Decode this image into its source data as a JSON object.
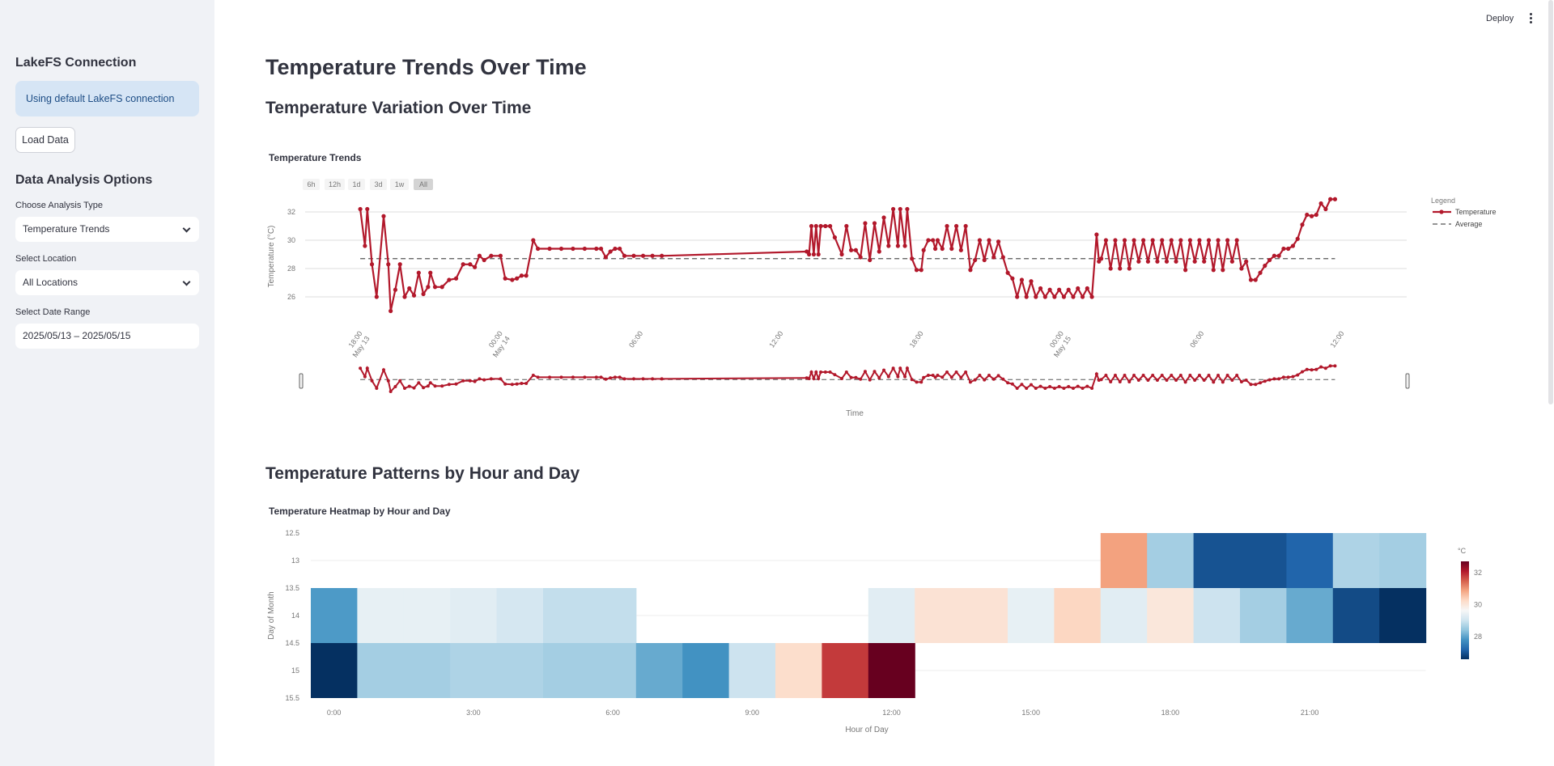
{
  "topbar": {
    "deploy_label": "Deploy",
    "menu_icon": "kebab-menu-icon"
  },
  "sidebar": {
    "connection_heading": "LakeFS Connection",
    "connection_info": "Using default LakeFS connection",
    "load_button": "Load Data",
    "options_heading": "Data Analysis Options",
    "analysis_label": "Choose Analysis Type",
    "analysis_value": "Temperature Trends",
    "location_label": "Select Location",
    "location_value": "All Locations",
    "date_label": "Select Date Range",
    "date_value": "2025/05/13 – 2025/05/15"
  },
  "main": {
    "page_title": "Temperature Trends Over Time",
    "section1_title": "Temperature Variation Over Time",
    "section2_title": "Temperature Patterns by Hour and Day"
  },
  "range_selector": [
    "6h",
    "12h",
    "1d",
    "3d",
    "1w",
    "All"
  ],
  "chart_data": [
    {
      "type": "line",
      "title": "Temperature Trends",
      "xlabel": "Time",
      "ylabel": "Temperature (°C)",
      "yticks": [
        "26",
        "28",
        "30",
        "32"
      ],
      "ylim": [
        25.5,
        33
      ],
      "xticks": [
        {
          "hour": 18,
          "line1": "18:00",
          "line2": "May 13"
        },
        {
          "hour": 24,
          "line1": "00:00",
          "line2": "May 14"
        },
        {
          "hour": 30,
          "line1": "06:00",
          "line2": ""
        },
        {
          "hour": 36,
          "line1": "12:00",
          "line2": ""
        },
        {
          "hour": 42,
          "line1": "18:00",
          "line2": ""
        },
        {
          "hour": 48,
          "line1": "00:00",
          "line2": "May 15"
        },
        {
          "hour": 54,
          "line1": "06:00",
          "line2": ""
        },
        {
          "hour": 60,
          "line1": "12:00",
          "line2": ""
        }
      ],
      "xlim_hours": [
        18,
        60
      ],
      "legend_title": "Legend",
      "legend_position": "top-right",
      "average": 28.7,
      "series": [
        {
          "name": "Temperature",
          "color": "#b2182b",
          "points": [
            [
              17.9,
              32.2
            ],
            [
              18.1,
              29.6
            ],
            [
              18.2,
              32.2
            ],
            [
              18.4,
              28.3
            ],
            [
              18.6,
              26.0
            ],
            [
              18.9,
              31.7
            ],
            [
              19.1,
              28.3
            ],
            [
              19.2,
              25.0
            ],
            [
              19.4,
              26.5
            ],
            [
              19.6,
              28.3
            ],
            [
              19.8,
              26.0
            ],
            [
              20.0,
              26.6
            ],
            [
              20.2,
              26.1
            ],
            [
              20.4,
              27.7
            ],
            [
              20.6,
              26.2
            ],
            [
              20.8,
              26.7
            ],
            [
              20.9,
              27.7
            ],
            [
              21.1,
              26.7
            ],
            [
              21.4,
              26.7
            ],
            [
              21.7,
              27.2
            ],
            [
              22.0,
              27.3
            ],
            [
              22.3,
              28.3
            ],
            [
              22.6,
              28.3
            ],
            [
              22.8,
              28.1
            ],
            [
              23.0,
              28.9
            ],
            [
              23.2,
              28.6
            ],
            [
              23.5,
              28.9
            ],
            [
              23.9,
              28.9
            ],
            [
              24.1,
              27.3
            ],
            [
              24.4,
              27.2
            ],
            [
              24.6,
              27.3
            ],
            [
              24.8,
              27.5
            ],
            [
              25.0,
              27.5
            ],
            [
              25.3,
              30.0
            ],
            [
              25.5,
              29.4
            ],
            [
              26.0,
              29.4
            ],
            [
              26.5,
              29.4
            ],
            [
              27.0,
              29.4
            ],
            [
              27.5,
              29.4
            ],
            [
              28.0,
              29.4
            ],
            [
              28.2,
              29.4
            ],
            [
              28.4,
              28.8
            ],
            [
              28.6,
              29.2
            ],
            [
              28.8,
              29.4
            ],
            [
              29.0,
              29.4
            ],
            [
              29.2,
              28.9
            ],
            [
              29.6,
              28.9
            ],
            [
              30.0,
              28.9
            ],
            [
              30.4,
              28.9
            ],
            [
              30.8,
              28.9
            ],
            [
              37.0,
              29.2
            ],
            [
              37.1,
              29.0
            ],
            [
              37.2,
              31.0
            ],
            [
              37.3,
              29.0
            ],
            [
              37.4,
              31.0
            ],
            [
              37.5,
              29.0
            ],
            [
              37.6,
              31.0
            ],
            [
              37.8,
              31.0
            ],
            [
              38.0,
              31.0
            ],
            [
              38.2,
              30.2
            ],
            [
              38.5,
              29.0
            ],
            [
              38.7,
              31.0
            ],
            [
              38.9,
              29.3
            ],
            [
              39.1,
              29.3
            ],
            [
              39.3,
              28.8
            ],
            [
              39.5,
              31.2
            ],
            [
              39.7,
              28.6
            ],
            [
              39.9,
              31.2
            ],
            [
              40.1,
              29.2
            ],
            [
              40.3,
              31.6
            ],
            [
              40.5,
              29.6
            ],
            [
              40.7,
              32.2
            ],
            [
              40.9,
              29.6
            ],
            [
              41.0,
              32.2
            ],
            [
              41.2,
              29.6
            ],
            [
              41.3,
              32.2
            ],
            [
              41.5,
              28.7
            ],
            [
              41.7,
              27.9
            ],
            [
              41.9,
              27.9
            ],
            [
              42.0,
              29.3
            ],
            [
              42.2,
              30.0
            ],
            [
              42.4,
              30.0
            ],
            [
              42.5,
              29.4
            ],
            [
              42.6,
              30.0
            ],
            [
              42.8,
              29.4
            ],
            [
              43.0,
              31.0
            ],
            [
              43.2,
              29.4
            ],
            [
              43.4,
              31.0
            ],
            [
              43.6,
              29.3
            ],
            [
              43.8,
              31.0
            ],
            [
              44.0,
              27.9
            ],
            [
              44.2,
              28.6
            ],
            [
              44.4,
              30.0
            ],
            [
              44.6,
              28.6
            ],
            [
              44.8,
              30.0
            ],
            [
              45.0,
              28.8
            ],
            [
              45.2,
              29.9
            ],
            [
              45.4,
              28.8
            ],
            [
              45.6,
              27.7
            ],
            [
              45.8,
              27.3
            ],
            [
              46.0,
              26.0
            ],
            [
              46.2,
              27.2
            ],
            [
              46.4,
              26.0
            ],
            [
              46.6,
              27.1
            ],
            [
              46.8,
              26.0
            ],
            [
              47.0,
              26.6
            ],
            [
              47.2,
              26.0
            ],
            [
              47.4,
              26.5
            ],
            [
              47.6,
              26.0
            ],
            [
              47.8,
              26.5
            ],
            [
              48.0,
              26.0
            ],
            [
              48.2,
              26.5
            ],
            [
              48.4,
              26.0
            ],
            [
              48.6,
              26.6
            ],
            [
              48.8,
              26.0
            ],
            [
              49.0,
              26.6
            ],
            [
              49.2,
              26.0
            ],
            [
              49.4,
              30.4
            ],
            [
              49.5,
              28.5
            ],
            [
              49.6,
              28.7
            ],
            [
              49.8,
              30.0
            ],
            [
              50.0,
              28.0
            ],
            [
              50.2,
              30.0
            ],
            [
              50.4,
              28.0
            ],
            [
              50.6,
              30.0
            ],
            [
              50.8,
              28.0
            ],
            [
              51.0,
              30.0
            ],
            [
              51.2,
              28.5
            ],
            [
              51.4,
              30.0
            ],
            [
              51.6,
              28.5
            ],
            [
              51.8,
              30.0
            ],
            [
              52.0,
              28.5
            ],
            [
              52.2,
              30.0
            ],
            [
              52.4,
              28.5
            ],
            [
              52.6,
              30.0
            ],
            [
              52.8,
              28.5
            ],
            [
              53.0,
              30.0
            ],
            [
              53.2,
              27.9
            ],
            [
              53.4,
              30.0
            ],
            [
              53.6,
              28.5
            ],
            [
              53.8,
              30.0
            ],
            [
              54.0,
              28.5
            ],
            [
              54.2,
              30.0
            ],
            [
              54.4,
              27.9
            ],
            [
              54.6,
              30.0
            ],
            [
              54.8,
              27.9
            ],
            [
              55.0,
              30.0
            ],
            [
              55.2,
              28.5
            ],
            [
              55.4,
              30.0
            ],
            [
              55.6,
              28.0
            ],
            [
              55.8,
              28.5
            ],
            [
              56.0,
              27.2
            ],
            [
              56.2,
              27.2
            ],
            [
              56.4,
              27.7
            ],
            [
              56.6,
              28.2
            ],
            [
              56.8,
              28.6
            ],
            [
              57.0,
              28.9
            ],
            [
              57.2,
              28.9
            ],
            [
              57.4,
              29.4
            ],
            [
              57.6,
              29.4
            ],
            [
              57.8,
              29.6
            ],
            [
              58.0,
              30.1
            ],
            [
              58.2,
              31.1
            ],
            [
              58.4,
              31.8
            ],
            [
              58.6,
              31.7
            ],
            [
              58.8,
              31.8
            ],
            [
              59.0,
              32.6
            ],
            [
              59.2,
              32.2
            ],
            [
              59.4,
              32.9
            ],
            [
              59.6,
              32.9
            ]
          ]
        },
        {
          "name": "Average",
          "color": "#555555",
          "dash": true
        }
      ]
    },
    {
      "type": "heatmap",
      "title": "Temperature Heatmap by Hour and Day",
      "xlabel": "Hour of Day",
      "ylabel": "Day of Month",
      "xticks": [
        "0:00",
        "3:00",
        "6:00",
        "9:00",
        "12:00",
        "15:00",
        "18:00",
        "21:00"
      ],
      "yticks": [
        "12.5",
        "13",
        "13.5",
        "14",
        "14.5",
        "15",
        "15.5"
      ],
      "rows": [
        13,
        14,
        15
      ],
      "hours": 24,
      "colorscale": "RdBu reversed",
      "colorbar_title": "°C",
      "colorbar_ticks": [
        "28",
        "30",
        "32"
      ],
      "zmin": 26.6,
      "zmax": 32.7,
      "z": [
        [
          null,
          null,
          null,
          null,
          null,
          null,
          null,
          null,
          null,
          null,
          null,
          null,
          null,
          null,
          null,
          null,
          null,
          30.9,
          28.6,
          27.0,
          27.0,
          27.2,
          28.7,
          28.6
        ],
        [
          27.9,
          29.4,
          29.4,
          29.3,
          29.1,
          28.9,
          28.9,
          null,
          null,
          null,
          null,
          null,
          29.3,
          30.1,
          30.1,
          29.4,
          30.3,
          29.3,
          30.0,
          29.0,
          28.6,
          28.1,
          26.9,
          26.6
        ],
        [
          26.6,
          28.6,
          28.6,
          28.7,
          28.7,
          28.6,
          28.6,
          28.1,
          27.8,
          29.0,
          30.2,
          31.8,
          32.7,
          null,
          null,
          null,
          null,
          null,
          null,
          null,
          null,
          null,
          null,
          null
        ]
      ]
    }
  ]
}
